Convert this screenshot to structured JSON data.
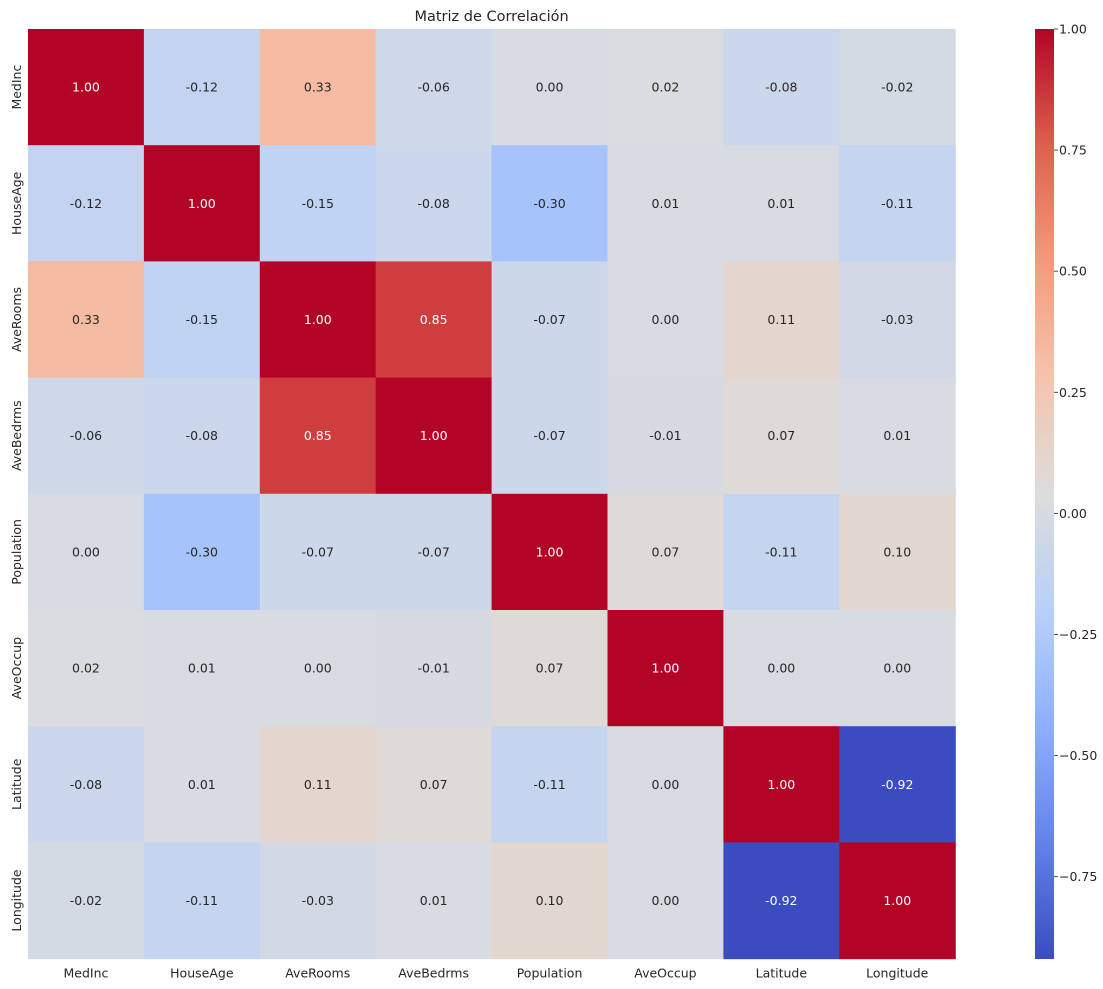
{
  "chart_data": {
    "type": "heatmap",
    "title": "Matriz de Correlación",
    "x_labels": [
      "MedInc",
      "HouseAge",
      "AveRooms",
      "AveBedrms",
      "Population",
      "AveOccup",
      "Latitude",
      "Longitude"
    ],
    "y_labels": [
      "MedInc",
      "HouseAge",
      "AveRooms",
      "AveBedrms",
      "Population",
      "AveOccup",
      "Latitude",
      "Longitude"
    ],
    "values": [
      [
        1.0,
        -0.12,
        0.33,
        -0.06,
        0.0,
        0.02,
        -0.08,
        -0.02
      ],
      [
        -0.12,
        1.0,
        -0.15,
        -0.08,
        -0.3,
        0.01,
        0.01,
        -0.11
      ],
      [
        0.33,
        -0.15,
        1.0,
        0.85,
        -0.07,
        -0.0,
        0.11,
        -0.03
      ],
      [
        -0.06,
        -0.08,
        0.85,
        1.0,
        -0.07,
        -0.01,
        0.07,
        0.01
      ],
      [
        0.0,
        -0.3,
        -0.07,
        -0.07,
        1.0,
        0.07,
        -0.11,
        0.1
      ],
      [
        0.02,
        0.01,
        -0.0,
        -0.01,
        0.07,
        1.0,
        0.0,
        0.0
      ],
      [
        -0.08,
        0.01,
        0.11,
        0.07,
        -0.11,
        0.0,
        1.0,
        -0.92
      ],
      [
        -0.02,
        -0.11,
        -0.03,
        0.01,
        0.1,
        0.0,
        -0.92,
        1.0
      ]
    ],
    "value_format": "0.00",
    "colormap": "coolwarm",
    "colorbar": {
      "vmin": -0.92,
      "vmax": 1.0,
      "ticks": [
        1.0,
        0.75,
        0.5,
        0.25,
        0.0,
        -0.25,
        -0.5,
        -0.75
      ],
      "tick_labels": [
        "1.00",
        "0.75",
        "0.50",
        "0.25",
        "0.00",
        "−0.25",
        "−0.50",
        "−0.75"
      ]
    },
    "grid": false
  }
}
